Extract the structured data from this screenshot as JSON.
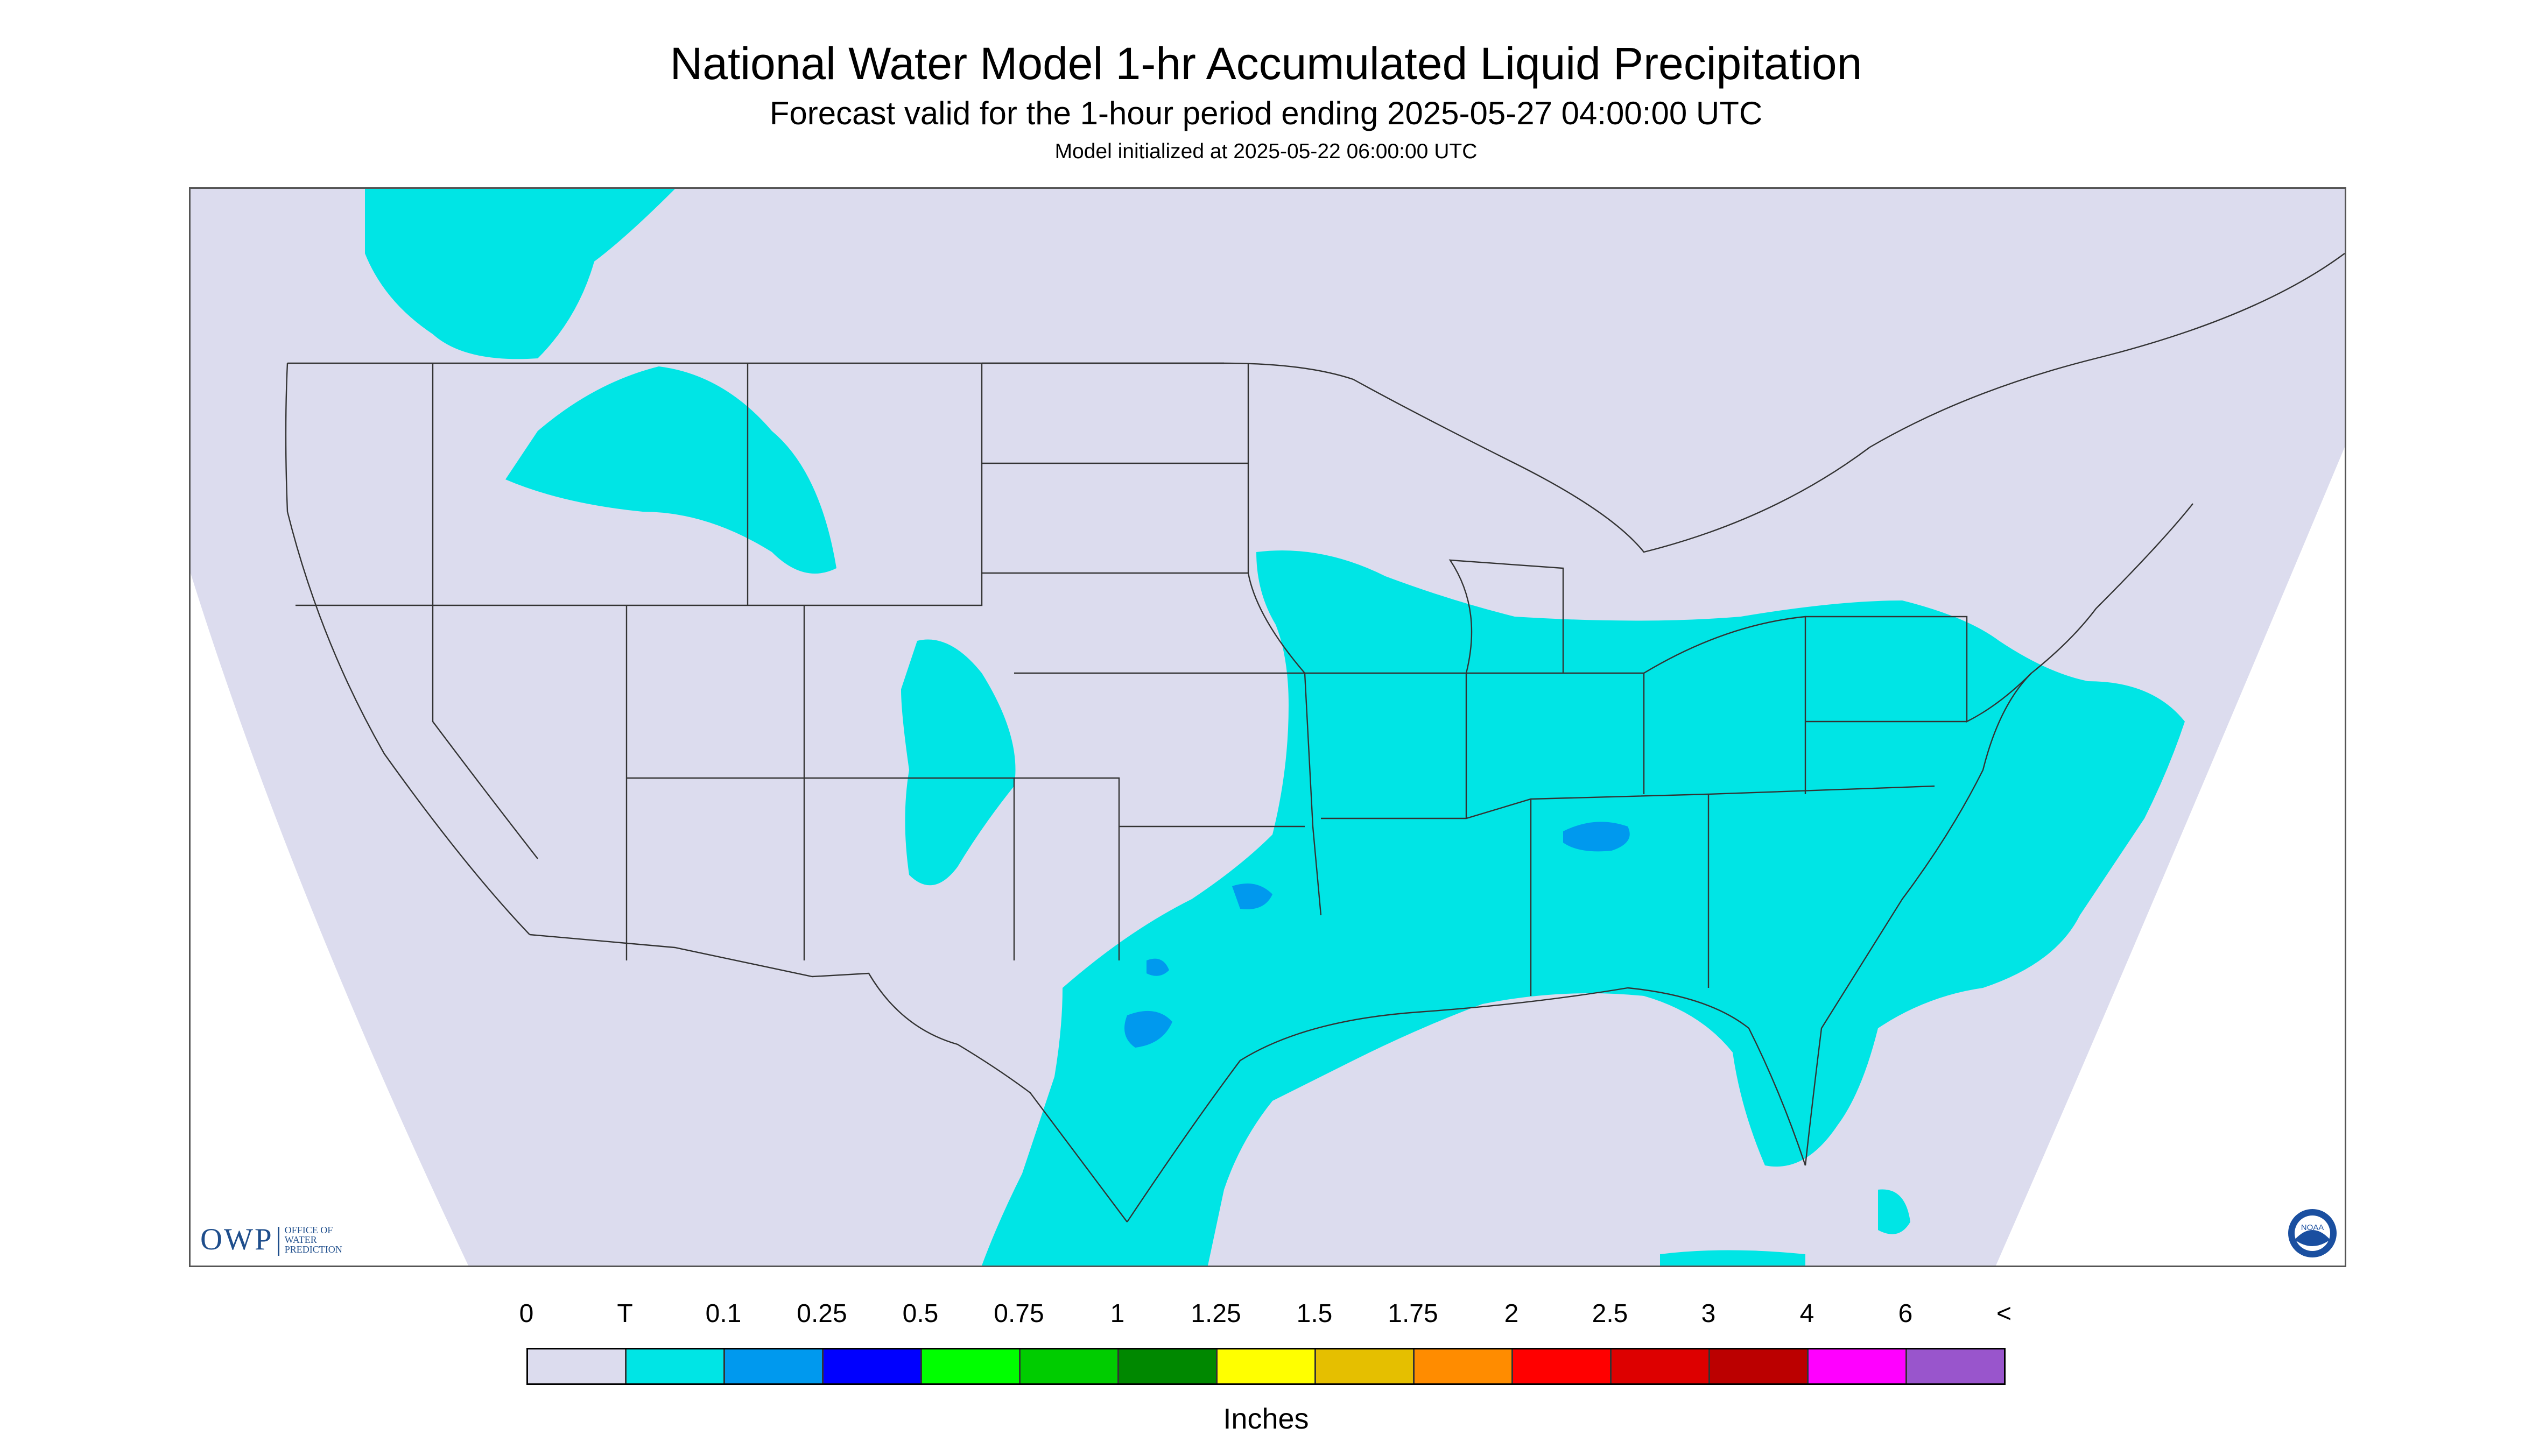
{
  "header": {
    "title": "National Water Model 1-hr Accumulated Liquid Precipitation",
    "subtitle": "Forecast valid for the 1-hour period ending 2025-05-27 04:00:00 UTC",
    "init": "Model initialized at 2025-05-22 06:00:00 UTC"
  },
  "map": {
    "background_color": "#dcdcee",
    "precip_color": "#00e5e5",
    "heavier_color": "#0099ee",
    "border_color": "#333333"
  },
  "logos": {
    "owp_text": "OWP",
    "owp_small_lines": [
      "OFFICE OF",
      "WATER",
      "PREDICTION"
    ],
    "noaa_text": "NOAA"
  },
  "legend": {
    "labels": [
      "0",
      "T",
      "0.1",
      "0.25",
      "0.5",
      "0.75",
      "1",
      "1.25",
      "1.5",
      "1.75",
      "2",
      "2.5",
      "3",
      "4",
      "6",
      "<"
    ],
    "colors": [
      "#dcdcee",
      "#00e5e5",
      "#0099ee",
      "#0000ff",
      "#00ff00",
      "#00cc00",
      "#008800",
      "#ffff00",
      "#e5bf00",
      "#ff8c00",
      "#ff0000",
      "#dd0000",
      "#bb0000",
      "#ff00ff",
      "#9955cc"
    ],
    "unit": "Inches"
  }
}
